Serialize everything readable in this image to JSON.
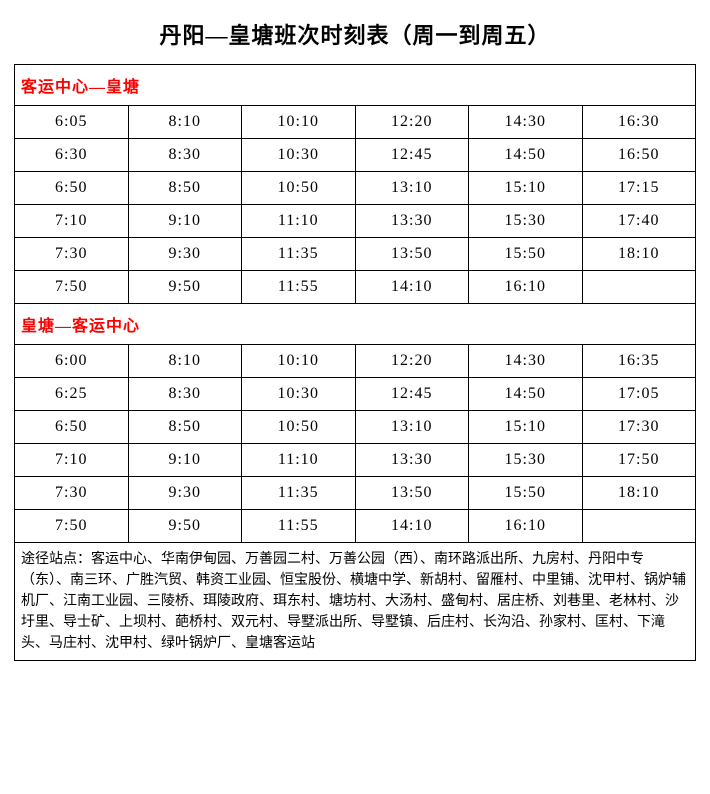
{
  "title": "丹阳—皇塘班次时刻表（周一到周五）",
  "section1": {
    "header": "客运中心—皇塘",
    "rows": [
      [
        "6:05",
        "8:10",
        "10:10",
        "12:20",
        "14:30",
        "16:30"
      ],
      [
        "6:30",
        "8:30",
        "10:30",
        "12:45",
        "14:50",
        "16:50"
      ],
      [
        "6:50",
        "8:50",
        "10:50",
        "13:10",
        "15:10",
        "17:15"
      ],
      [
        "7:10",
        "9:10",
        "11:10",
        "13:30",
        "15:30",
        "17:40"
      ],
      [
        "7:30",
        "9:30",
        "11:35",
        "13:50",
        "15:50",
        "18:10"
      ],
      [
        "7:50",
        "9:50",
        "11:55",
        "14:10",
        "16:10",
        ""
      ]
    ]
  },
  "section2": {
    "header": "皇塘—客运中心",
    "rows": [
      [
        "6:00",
        "8:10",
        "10:10",
        "12:20",
        "14:30",
        "16:35"
      ],
      [
        "6:25",
        "8:30",
        "10:30",
        "12:45",
        "14:50",
        "17:05"
      ],
      [
        "6:50",
        "8:50",
        "10:50",
        "13:10",
        "15:10",
        "17:30"
      ],
      [
        "7:10",
        "9:10",
        "11:10",
        "13:30",
        "15:30",
        "17:50"
      ],
      [
        "7:30",
        "9:30",
        "11:35",
        "13:50",
        "15:50",
        "18:10"
      ],
      [
        "7:50",
        "9:50",
        "11:55",
        "14:10",
        "16:10",
        ""
      ]
    ]
  },
  "footer": "途径站点：客运中心、华南伊甸园、万善园二村、万善公园（西）、南环路派出所、九房村、丹阳中专（东）、南三环、广胜汽贸、韩资工业园、恒宝股份、横塘中学、新胡村、留雁村、中里铺、沈甲村、锅炉辅机厂、江南工业园、三陵桥、珥陵政府、珥东村、塘坊村、大汤村、盛甸村、居庄桥、刘巷里、老林村、沙圩里、导士矿、上坝村、葩桥村、双元村、导墅派出所、导墅镇、后庄村、长沟沿、孙家村、匡村、下滝头、马庄村、沈甲村、绿叶锅炉厂、皇塘客运站"
}
